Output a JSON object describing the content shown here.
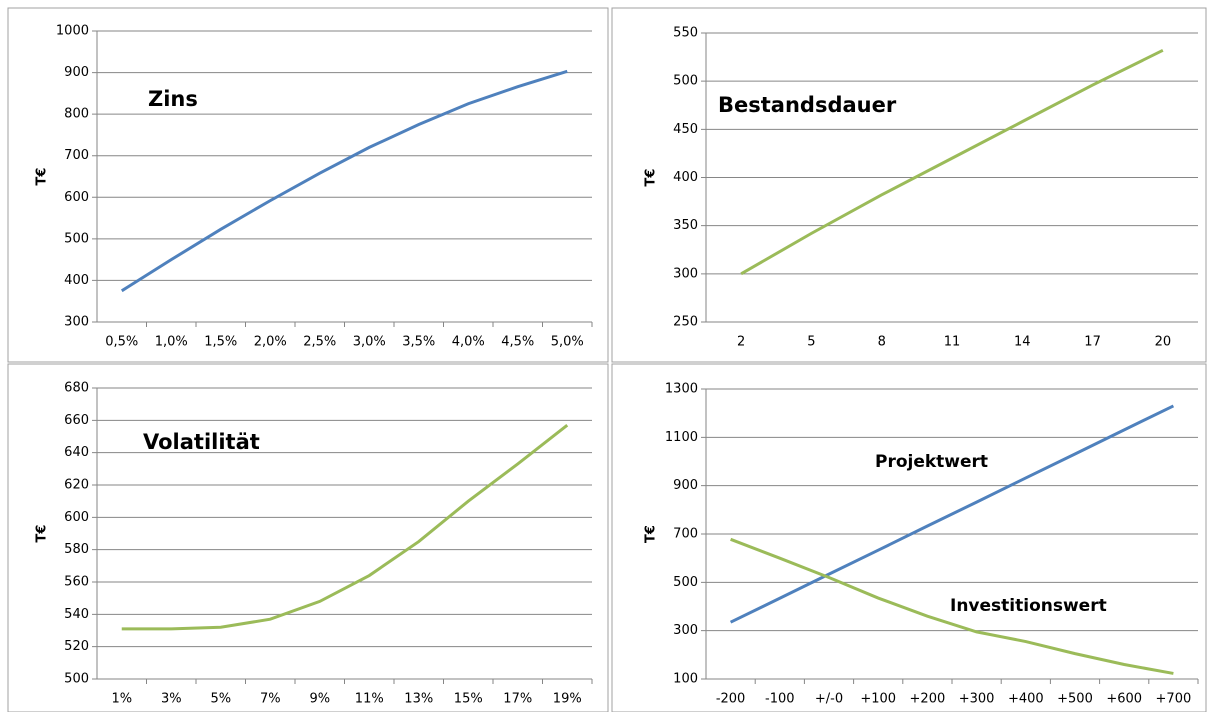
{
  "chart_data": [
    {
      "type": "line",
      "title": "Zins",
      "y_label": "T€",
      "grid": true,
      "categories": [
        "0,5%",
        "1,0%",
        "1,5%",
        "2,0%",
        "2,5%",
        "3,0%",
        "3,5%",
        "4,0%",
        "4,5%",
        "5,0%"
      ],
      "series": [
        {
          "name": "Zins",
          "color": "#4f81bd",
          "values": [
            375,
            450,
            523,
            592,
            658,
            720,
            775,
            825,
            866,
            903
          ]
        }
      ],
      "ylim": [
        300,
        1000
      ],
      "yticks": [
        300,
        400,
        500,
        600,
        700,
        800,
        900,
        1000
      ]
    },
    {
      "type": "line",
      "title": "Bestandsdauer",
      "y_label": "T€",
      "grid": true,
      "x": [
        2,
        5,
        8,
        11,
        14,
        17,
        20
      ],
      "xlim": [
        0.5,
        21.5
      ],
      "xticks": [
        2,
        5,
        8,
        11,
        14,
        17,
        20
      ],
      "series": [
        {
          "name": "Bestandsdauer",
          "color": "#9bbb59",
          "values": [
            300,
            342,
            382,
            420,
            458,
            496,
            532
          ]
        }
      ],
      "ylim": [
        250,
        550
      ],
      "yticks": [
        250,
        300,
        350,
        400,
        450,
        500,
        550
      ]
    },
    {
      "type": "line",
      "title": "Volatilität",
      "y_label": "T€",
      "grid": true,
      "categories": [
        "1%",
        "3%",
        "5%",
        "7%",
        "9%",
        "11%",
        "13%",
        "15%",
        "17%",
        "19%"
      ],
      "series": [
        {
          "name": "Volatilität",
          "color": "#9bbb59",
          "values": [
            531,
            531,
            532,
            537,
            548,
            564,
            585,
            610,
            633,
            657
          ]
        }
      ],
      "ylim": [
        500,
        680
      ],
      "yticks": [
        500,
        520,
        540,
        560,
        580,
        600,
        620,
        640,
        660,
        680
      ]
    },
    {
      "type": "line",
      "y_label": "T€",
      "grid": true,
      "categories": [
        "-200",
        "-100",
        "+/-0",
        "+100",
        "+200",
        "+300",
        "+400",
        "+500",
        "+600",
        "+700"
      ],
      "series": [
        {
          "name": "Projektwert",
          "color": "#4f81bd",
          "values": [
            335,
            434,
            534,
            633,
            733,
            832,
            932,
            1031,
            1131,
            1230
          ]
        },
        {
          "name": "Investitionswert",
          "color": "#9bbb59",
          "values": [
            678,
            600,
            520,
            435,
            360,
            295,
            255,
            205,
            160,
            123
          ]
        }
      ],
      "ylim": [
        100,
        1300
      ],
      "yticks": [
        100,
        300,
        500,
        700,
        900,
        1100,
        1300
      ]
    }
  ]
}
